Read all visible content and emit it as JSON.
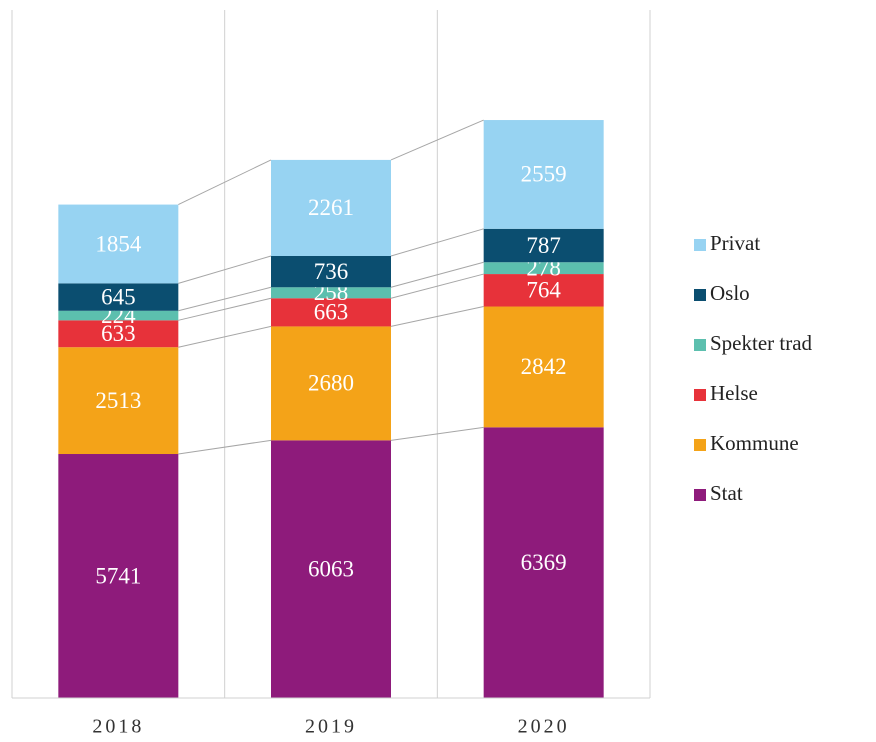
{
  "chart_data": {
    "type": "stacked_bar",
    "categories": [
      "2018",
      "2019",
      "2020"
    ],
    "series": [
      {
        "name": "Stat",
        "color": "#8e1b7b",
        "values": [
          5741,
          6063,
          6369
        ]
      },
      {
        "name": "Kommune",
        "color": "#f4a318",
        "values": [
          2513,
          2680,
          2842
        ]
      },
      {
        "name": "Helse",
        "color": "#e7323a",
        "values": [
          633,
          663,
          764
        ]
      },
      {
        "name": "Spekter trad",
        "color": "#5cbfae",
        "values": [
          224,
          258,
          278
        ]
      },
      {
        "name": "Oslo",
        "color": "#0b4e70",
        "values": [
          645,
          736,
          787
        ]
      },
      {
        "name": "Privat",
        "color": "#97d3f2",
        "values": [
          1854,
          2261,
          2559
        ]
      }
    ],
    "ylim": [
      0,
      16000
    ],
    "series_lines": true,
    "legend": "right"
  }
}
